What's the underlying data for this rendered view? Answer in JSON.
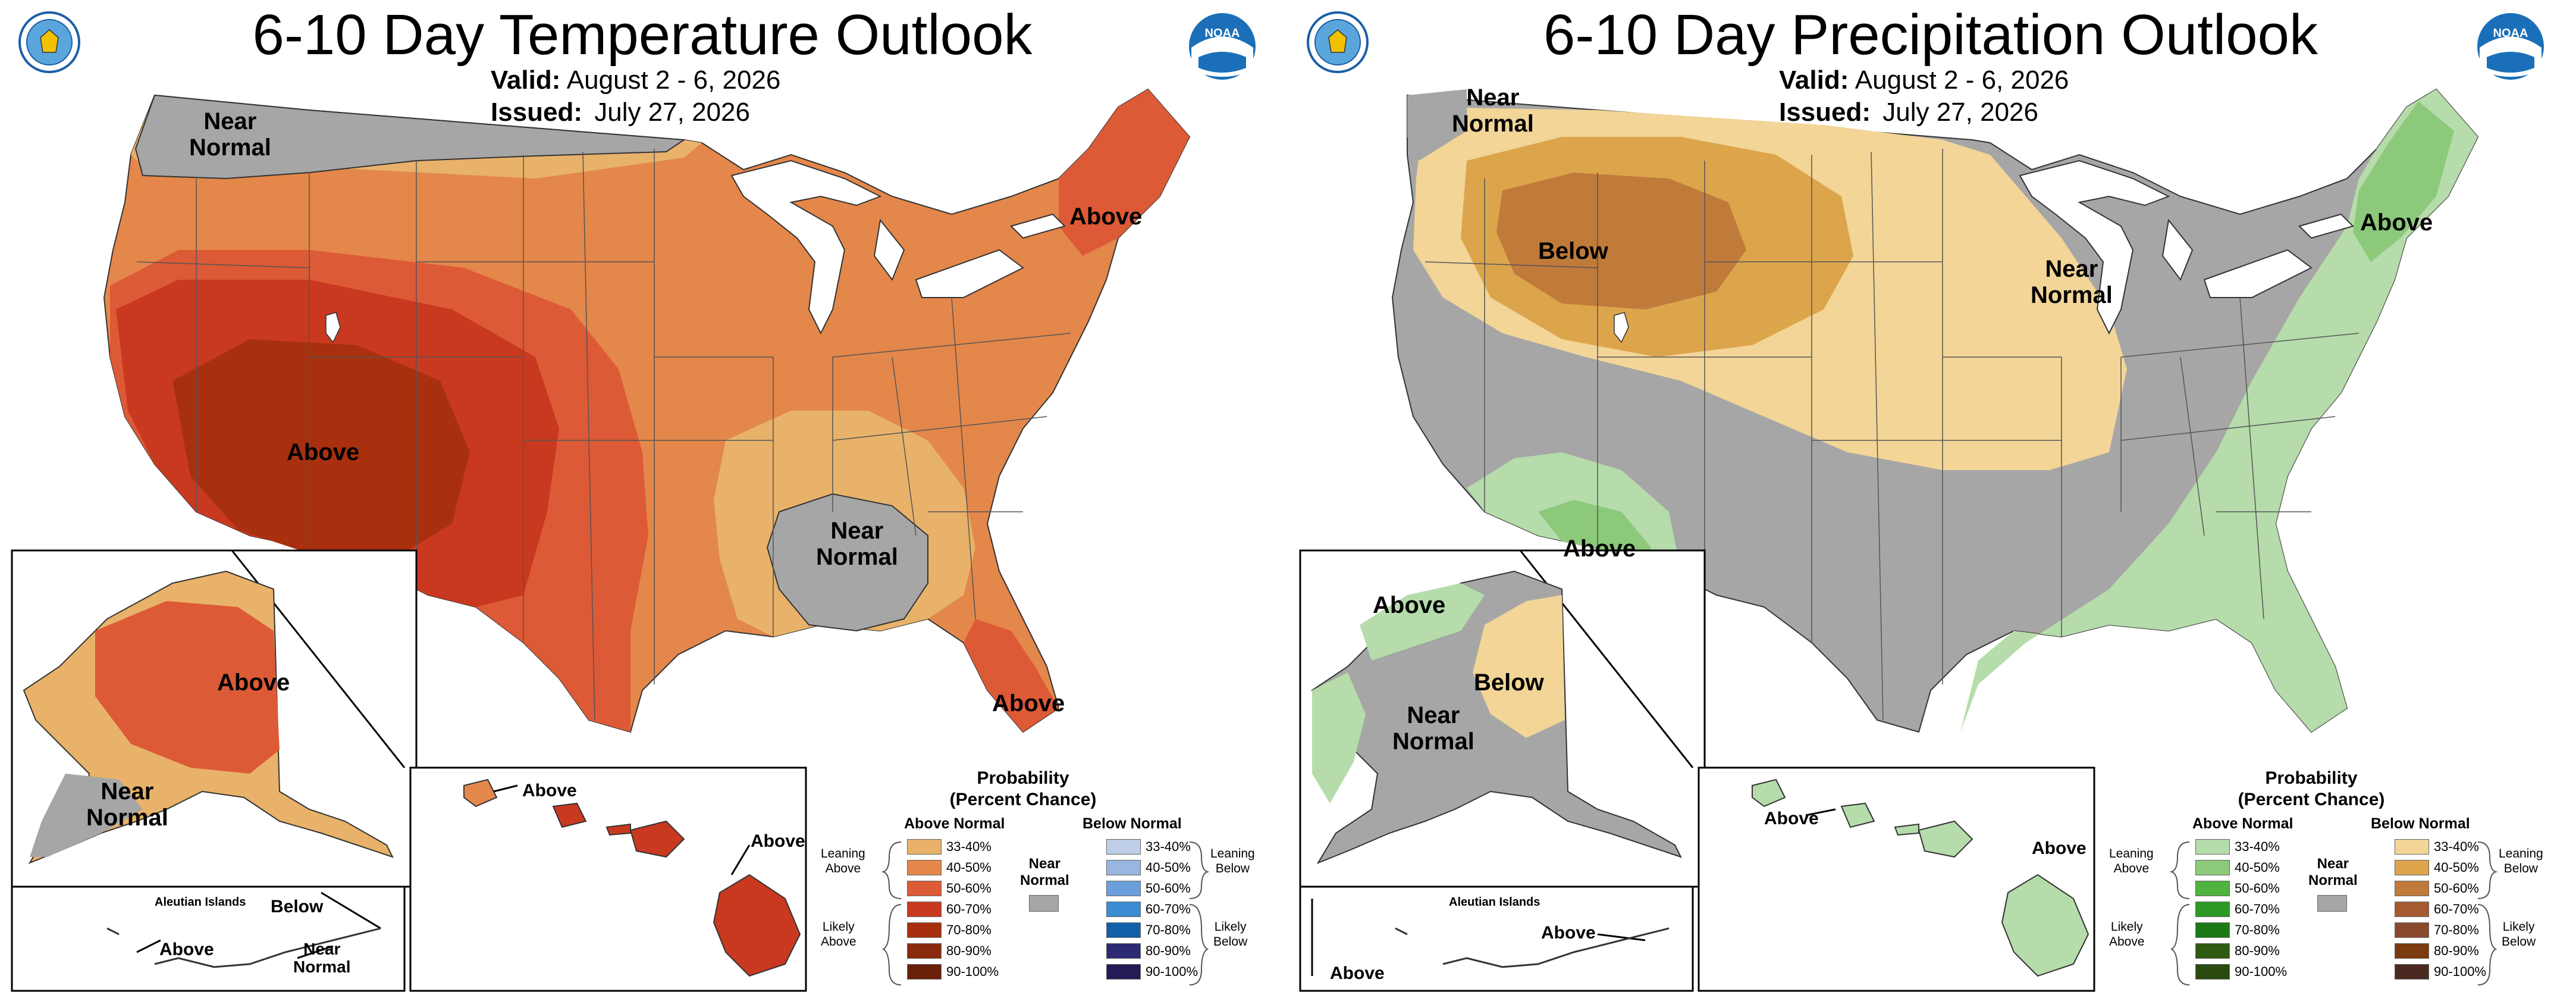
{
  "panels": [
    {
      "id": "temp",
      "title": "6-10 Day Temperature Outlook",
      "valid_label": "Valid:",
      "valid_value": "August 2 - 6, 2026",
      "issued_label": "Issued:",
      "issued_value": "July 27, 2026",
      "regions": [
        {
          "label": "Near\nNormal",
          "category": "near-normal"
        },
        {
          "label": "Above",
          "category": "above"
        },
        {
          "label": "Above",
          "category": "above"
        },
        {
          "label": "Near\nNormal",
          "category": "near-normal"
        },
        {
          "label": "Above",
          "category": "above"
        }
      ],
      "alaska_regions": [
        {
          "label": "Above",
          "category": "above"
        },
        {
          "label": "Near\nNormal",
          "category": "near-normal"
        }
      ],
      "aleutian_title": "Aleutian Islands",
      "aleutian_regions": [
        {
          "label": "Below",
          "category": "below"
        },
        {
          "label": "Above",
          "category": "above"
        },
        {
          "label": "Near\nNormal",
          "category": "near-normal"
        }
      ],
      "hawaii_regions": [
        {
          "label": "Above",
          "category": "above"
        },
        {
          "label": "Above",
          "category": "above"
        }
      ],
      "legend": {
        "title": "Probability\n(Percent Chance)",
        "above_head": "Above Normal",
        "below_head": "Below Normal",
        "near_normal_label": "Near\nNormal",
        "leaning_above": "Leaning\nAbove",
        "likely_above": "Likely\nAbove",
        "leaning_below": "Leaning\nBelow",
        "likely_below": "Likely\nBelow",
        "ranges": [
          "33-40%",
          "40-50%",
          "50-60%",
          "60-70%",
          "70-80%",
          "80-90%",
          "90-100%"
        ],
        "above_colors": [
          "#e8b26a",
          "#e4874a",
          "#dd5a36",
          "#c9391f",
          "#a8300f",
          "#8a2a0c",
          "#6a1f09"
        ],
        "below_colors": [
          "#bfcfe8",
          "#98b6df",
          "#6a9fdb",
          "#3b8cd2",
          "#1260a8",
          "#2b2a72",
          "#221b55"
        ],
        "near_normal_color": "#a6a6a6"
      }
    },
    {
      "id": "precip",
      "title": "6-10 Day Precipitation Outlook",
      "valid_label": "Valid:",
      "valid_value": "August 2 - 6, 2026",
      "issued_label": "Issued:",
      "issued_value": "July 27, 2026",
      "regions": [
        {
          "label": "Near\nNormal",
          "category": "near-normal"
        },
        {
          "label": "Below",
          "category": "below"
        },
        {
          "label": "Above",
          "category": "above"
        },
        {
          "label": "Near\nNormal",
          "category": "near-normal"
        },
        {
          "label": "Above",
          "category": "above"
        }
      ],
      "alaska_regions": [
        {
          "label": "Above",
          "category": "above"
        },
        {
          "label": "Below",
          "category": "below"
        },
        {
          "label": "Near\nNormal",
          "category": "near-normal"
        }
      ],
      "aleutian_title": "Aleutian Islands",
      "aleutian_regions": [
        {
          "label": "Above",
          "category": "above"
        },
        {
          "label": "Above",
          "category": "above"
        }
      ],
      "hawaii_regions": [
        {
          "label": "Above",
          "category": "above"
        },
        {
          "label": "Above",
          "category": "above"
        }
      ],
      "legend": {
        "title": "Probability\n(Percent Chance)",
        "above_head": "Above Normal",
        "below_head": "Below Normal",
        "near_normal_label": "Near\nNormal",
        "leaning_above": "Leaning\nAbove",
        "likely_above": "Likely\nAbove",
        "leaning_below": "Leaning\nBelow",
        "likely_below": "Likely\nBelow",
        "ranges": [
          "33-40%",
          "40-50%",
          "50-60%",
          "60-70%",
          "70-80%",
          "80-90%",
          "90-100%"
        ],
        "above_colors": [
          "#b5dcaa",
          "#8cc97a",
          "#4fb33f",
          "#2a9a24",
          "#1b7a16",
          "#2f5a12",
          "#2a4a10"
        ],
        "below_colors": [
          "#f2d597",
          "#dca54c",
          "#c07a3a",
          "#a65a30",
          "#8a4a2e",
          "#7a3b0f",
          "#4a2a20"
        ],
        "near_normal_color": "#a6a6a6"
      }
    }
  ],
  "map_colors": {
    "temp_a1": "#e8b26a",
    "temp_a2": "#e4874a",
    "temp_a3": "#dd5a36",
    "temp_a4": "#c9391f",
    "temp_a5": "#a8300f",
    "near_normal": "#a6a6a6",
    "precip_ab1": "#b5dcaa",
    "precip_ab2": "#8cc97a",
    "precip_be1": "#f2d597",
    "precip_be2": "#dca54c",
    "precip_be3": "#c07a3a",
    "lakes": "#ffffff"
  },
  "logos": [
    "noaa-logo",
    "commerce-seal"
  ]
}
